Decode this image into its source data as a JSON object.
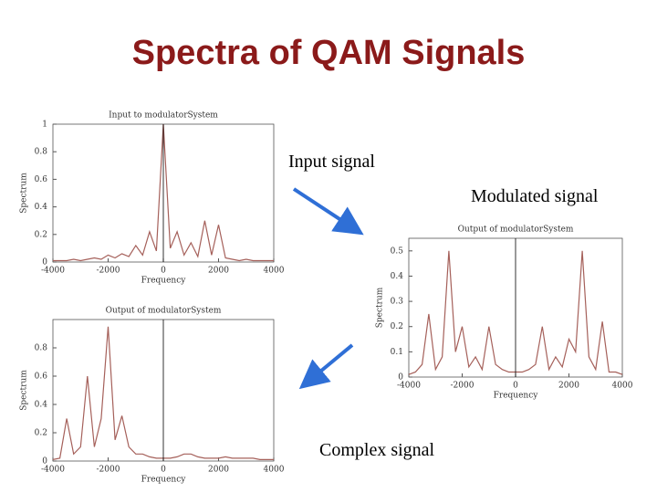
{
  "title": "Spectra of QAM Signals",
  "annotations": [
    "Input signal",
    "Modulated signal",
    "Complex signal"
  ],
  "chart_data": [
    {
      "type": "line",
      "title": "Input to modulatorSystem",
      "xlabel": "Frequency",
      "ylabel": "Spectrum",
      "x": [
        -4000,
        -3750,
        -3500,
        -3250,
        -3000,
        -2750,
        -2500,
        -2250,
        -2000,
        -1750,
        -1500,
        -1250,
        -1000,
        -750,
        -500,
        -250,
        0,
        250,
        500,
        750,
        1000,
        1250,
        1500,
        1750,
        2000,
        2250,
        2500,
        2750,
        3000,
        3250,
        3500,
        3750,
        4000
      ],
      "series": [
        {
          "name": "Input",
          "color": "#a5605a",
          "values": [
            0.01,
            0.01,
            0.01,
            0.02,
            0.01,
            0.02,
            0.03,
            0.02,
            0.05,
            0.03,
            0.06,
            0.04,
            0.12,
            0.05,
            0.22,
            0.08,
            1,
            0.1,
            0.22,
            0.05,
            0.14,
            0.04,
            0.3,
            0.05,
            0.27,
            0.03,
            0.02,
            0.01,
            0.02,
            0.01,
            0.01,
            0.01,
            0.01
          ]
        }
      ],
      "xlim": [
        -4000,
        4000
      ],
      "xticks": [
        -4000,
        -2000,
        0,
        2000,
        4000
      ],
      "ylim": [
        0,
        1
      ],
      "yticks": [
        0,
        0.2,
        0.4,
        0.6,
        0.8,
        1
      ]
    },
    {
      "type": "line",
      "title": "Output of modulatorSystem",
      "xlabel": "Frequency",
      "ylabel": "Spectrum",
      "x": [
        -4000,
        -3750,
        -3500,
        -3250,
        -3000,
        -2750,
        -2500,
        -2250,
        -2000,
        -1750,
        -1500,
        -1250,
        -1000,
        -750,
        -500,
        -250,
        0,
        250,
        500,
        750,
        1000,
        1250,
        1500,
        1750,
        2000,
        2250,
        2500,
        2750,
        3000,
        3250,
        3500,
        3750,
        4000
      ],
      "series": [
        {
          "name": "Modulated",
          "color": "#a5605a",
          "values": [
            0.01,
            0.02,
            0.05,
            0.25,
            0.03,
            0.08,
            0.5,
            0.1,
            0.2,
            0.04,
            0.08,
            0.03,
            0.2,
            0.05,
            0.03,
            0.02,
            0.02,
            0.02,
            0.03,
            0.05,
            0.2,
            0.03,
            0.08,
            0.04,
            0.15,
            0.1,
            0.5,
            0.08,
            0.03,
            0.22,
            0.02,
            0.02,
            0.01
          ]
        }
      ],
      "xlim": [
        -4000,
        4000
      ],
      "xticks": [
        -4000,
        -2000,
        0,
        2000,
        4000
      ],
      "ylim": [
        0,
        0.55
      ],
      "yticks": [
        0,
        0.1,
        0.2,
        0.3,
        0.4,
        0.5
      ]
    },
    {
      "type": "line",
      "title": "Output of modulatorSystem",
      "xlabel": "Frequency",
      "ylabel": "Spectrum",
      "x": [
        -4000,
        -3750,
        -3500,
        -3250,
        -3000,
        -2750,
        -2500,
        -2250,
        -2000,
        -1750,
        -1500,
        -1250,
        -1000,
        -750,
        -500,
        -250,
        0,
        250,
        500,
        750,
        1000,
        1250,
        1500,
        1750,
        2000,
        2250,
        2500,
        2750,
        3000,
        3250,
        3500,
        3750,
        4000
      ],
      "series": [
        {
          "name": "Complex",
          "color": "#a5605a",
          "values": [
            0.01,
            0.02,
            0.3,
            0.05,
            0.1,
            0.6,
            0.1,
            0.3,
            0.95,
            0.15,
            0.32,
            0.1,
            0.05,
            0.05,
            0.03,
            0.02,
            0.02,
            0.02,
            0.03,
            0.05,
            0.05,
            0.03,
            0.02,
            0.02,
            0.02,
            0.03,
            0.02,
            0.02,
            0.02,
            0.02,
            0.01,
            0.01,
            0.01
          ]
        }
      ],
      "xlim": [
        -4000,
        4000
      ],
      "xticks": [
        -4000,
        -2000,
        0,
        2000,
        4000
      ],
      "ylim": [
        0,
        1
      ],
      "yticks": [
        0,
        0.2,
        0.4,
        0.6,
        0.8
      ]
    }
  ]
}
